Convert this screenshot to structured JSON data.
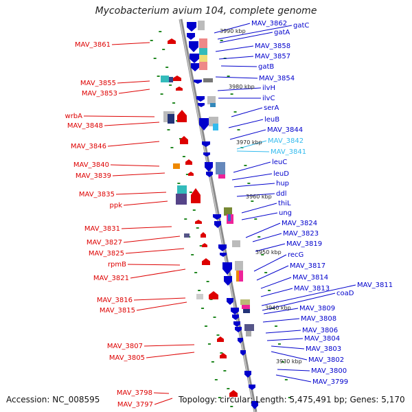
{
  "title": "Mycobacterium avium 104, complete genome",
  "footer": {
    "accession": "Accession: NC_008595",
    "stats": "Topology: circular; Length: 5,475,491 bp; Genes: 5,170"
  },
  "colors": {
    "left_genes": "#dd0000",
    "right_genes": "#0000cc",
    "highlight_genes": "#33bbee",
    "backbone": "#999999",
    "ticks": "#228822"
  },
  "kbp_markers": [
    "3990 kbp",
    "3980 kbp",
    "3970 kbp",
    "3960 kbp",
    "3950 kbp",
    "3940 kbp",
    "3930 kbp"
  ],
  "left_labels": [
    "MAV_3861",
    "MAV_3855",
    "MAV_3853",
    "wrbA",
    "MAV_3848",
    "MAV_3846",
    "MAV_3840",
    "MAV_3839",
    "MAV_3835",
    "ppk",
    "MAV_3831",
    "MAV_3827",
    "MAV_3825",
    "rpmB",
    "MAV_3821",
    "MAV_3816",
    "MAV_3815",
    "MAV_3807",
    "MAV_3805",
    "MAV_3798",
    "MAV_3797"
  ],
  "right_labels": [
    "MAV_3862",
    "gatC",
    "gatA",
    "MAV_3858",
    "MAV_3857",
    "gatB",
    "MAV_3854",
    "ilvH",
    "ilvC",
    "serA",
    "leuB",
    "MAV_3844",
    "MAV_3842",
    "MAV_3841",
    "leuC",
    "leuD",
    "hup",
    "ddl",
    "thiL",
    "ung",
    "MAV_3824",
    "MAV_3823",
    "MAV_3819",
    "recG",
    "MAV_3817",
    "MAV_3814",
    "MAV_3813",
    "MAV_3811",
    "coaD",
    "MAV_3809",
    "MAV_3808",
    "MAV_3806",
    "MAV_3804",
    "MAV_3803",
    "MAV_3802",
    "MAV_3800",
    "MAV_3799"
  ],
  "highlighted_right_labels": [
    "MAV_3842",
    "MAV_3841"
  ]
}
